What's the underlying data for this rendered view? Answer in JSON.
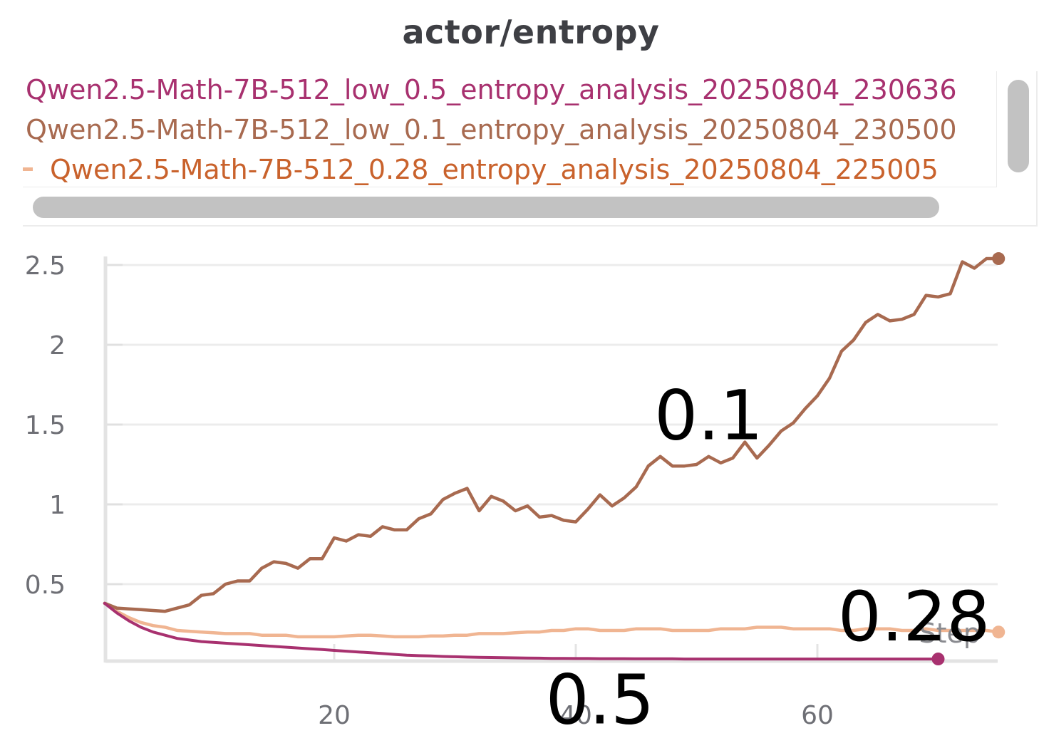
{
  "chart_data": {
    "type": "line",
    "title": "actor/entropy",
    "xlabel": "Step",
    "ylabel": "",
    "xlim": [
      0.5,
      75
    ],
    "ylim": [
      0,
      2.6
    ],
    "x_ticks": [
      20,
      40,
      60
    ],
    "y_ticks": [
      0.5,
      1,
      1.5,
      2,
      2.5
    ],
    "grid": true,
    "legend_position": "top",
    "series": [
      {
        "name": "Qwen2.5-Math-7B-512_low_0.5_entropy_analysis_20250804_230636",
        "color": "#a8316f",
        "x": [
          1,
          2,
          3,
          4,
          5,
          6,
          7,
          8,
          9,
          10,
          11,
          12,
          13,
          14,
          15,
          16,
          17,
          18,
          19,
          20,
          21,
          22,
          23,
          24,
          25,
          26,
          27,
          28,
          29,
          30,
          31,
          32,
          33,
          34,
          35,
          36,
          37,
          38,
          39,
          40,
          41,
          42,
          43,
          44,
          45,
          46,
          47,
          48,
          49,
          50,
          51,
          52,
          53,
          54,
          55,
          56,
          57,
          58,
          59,
          60,
          61,
          62,
          63,
          64,
          65,
          66,
          67,
          68,
          69,
          70
        ],
        "y": [
          0.38,
          0.32,
          0.27,
          0.23,
          0.2,
          0.18,
          0.16,
          0.15,
          0.14,
          0.135,
          0.13,
          0.125,
          0.12,
          0.115,
          0.11,
          0.105,
          0.1,
          0.095,
          0.09,
          0.085,
          0.08,
          0.075,
          0.07,
          0.065,
          0.06,
          0.055,
          0.052,
          0.05,
          0.047,
          0.045,
          0.043,
          0.041,
          0.04,
          0.039,
          0.038,
          0.037,
          0.036,
          0.035,
          0.035,
          0.034,
          0.034,
          0.033,
          0.033,
          0.033,
          0.032,
          0.032,
          0.032,
          0.032,
          0.031,
          0.031,
          0.031,
          0.031,
          0.031,
          0.031,
          0.031,
          0.031,
          0.031,
          0.031,
          0.031,
          0.031,
          0.031,
          0.031,
          0.031,
          0.031,
          0.031,
          0.031,
          0.031,
          0.031,
          0.031,
          0.031
        ]
      },
      {
        "name": "Qwen2.5-Math-7B-512_low_0.1_entropy_analysis_20250804_230500",
        "color": "#a86a50",
        "x": [
          1,
          2,
          3,
          4,
          5,
          6,
          7,
          8,
          9,
          10,
          11,
          12,
          13,
          14,
          15,
          16,
          17,
          18,
          19,
          20,
          21,
          22,
          23,
          24,
          25,
          26,
          27,
          28,
          29,
          30,
          31,
          32,
          33,
          34,
          35,
          36,
          37,
          38,
          39,
          40,
          41,
          42,
          43,
          44,
          45,
          46,
          47,
          48,
          49,
          50,
          51,
          52,
          53,
          54,
          55,
          56,
          57,
          58,
          59,
          60,
          61,
          62,
          63,
          64,
          65,
          66,
          67,
          68,
          69,
          70,
          71,
          72,
          73,
          74,
          75
        ],
        "y": [
          0.38,
          0.35,
          0.345,
          0.34,
          0.335,
          0.33,
          0.35,
          0.37,
          0.43,
          0.44,
          0.5,
          0.52,
          0.52,
          0.6,
          0.64,
          0.63,
          0.6,
          0.66,
          0.66,
          0.79,
          0.77,
          0.81,
          0.8,
          0.86,
          0.84,
          0.84,
          0.91,
          0.94,
          1.03,
          1.07,
          1.1,
          0.96,
          1.05,
          1.02,
          0.96,
          0.99,
          0.92,
          0.93,
          0.9,
          0.89,
          0.97,
          1.06,
          0.99,
          1.04,
          1.11,
          1.24,
          1.3,
          1.24,
          1.24,
          1.25,
          1.3,
          1.26,
          1.29,
          1.39,
          1.29,
          1.37,
          1.46,
          1.51,
          1.6,
          1.68,
          1.79,
          1.96,
          2.03,
          2.14,
          2.19,
          2.15,
          2.16,
          2.19,
          2.31,
          2.3,
          2.32,
          2.52,
          2.48,
          2.54,
          2.54
        ]
      },
      {
        "name": "Qwen2.5-Math-7B-512_0.28_entropy_analysis_20250804_225005",
        "color": "#f0b592",
        "legend_color": "#c9622c",
        "x": [
          1,
          2,
          3,
          4,
          5,
          6,
          7,
          8,
          9,
          10,
          11,
          12,
          13,
          14,
          15,
          16,
          17,
          18,
          19,
          20,
          21,
          22,
          23,
          24,
          25,
          26,
          27,
          28,
          29,
          30,
          31,
          32,
          33,
          34,
          35,
          36,
          37,
          38,
          39,
          40,
          41,
          42,
          43,
          44,
          45,
          46,
          47,
          48,
          49,
          50,
          51,
          52,
          53,
          54,
          55,
          56,
          57,
          58,
          59,
          60,
          61,
          62,
          63,
          64,
          65,
          66,
          67,
          68,
          69,
          70,
          71,
          72,
          73,
          74,
          75
        ],
        "y": [
          0.38,
          0.33,
          0.29,
          0.26,
          0.24,
          0.23,
          0.21,
          0.205,
          0.2,
          0.195,
          0.19,
          0.19,
          0.19,
          0.18,
          0.18,
          0.18,
          0.17,
          0.17,
          0.17,
          0.17,
          0.175,
          0.18,
          0.18,
          0.175,
          0.17,
          0.17,
          0.17,
          0.175,
          0.175,
          0.18,
          0.18,
          0.19,
          0.19,
          0.19,
          0.195,
          0.2,
          0.2,
          0.21,
          0.21,
          0.22,
          0.22,
          0.21,
          0.21,
          0.21,
          0.22,
          0.22,
          0.22,
          0.21,
          0.21,
          0.21,
          0.21,
          0.22,
          0.22,
          0.22,
          0.23,
          0.23,
          0.23,
          0.22,
          0.22,
          0.22,
          0.22,
          0.21,
          0.21,
          0.22,
          0.22,
          0.22,
          0.21,
          0.21,
          0.22,
          0.21,
          0.21,
          0.21,
          0.21,
          0.21,
          0.2
        ]
      }
    ],
    "annotations": [
      {
        "text": "0.1",
        "x": 51,
        "y": 1.56
      },
      {
        "text": "0.28",
        "x": 68,
        "y": 0.3
      },
      {
        "text": "0.5",
        "x": 42,
        "y": -0.22
      }
    ]
  }
}
